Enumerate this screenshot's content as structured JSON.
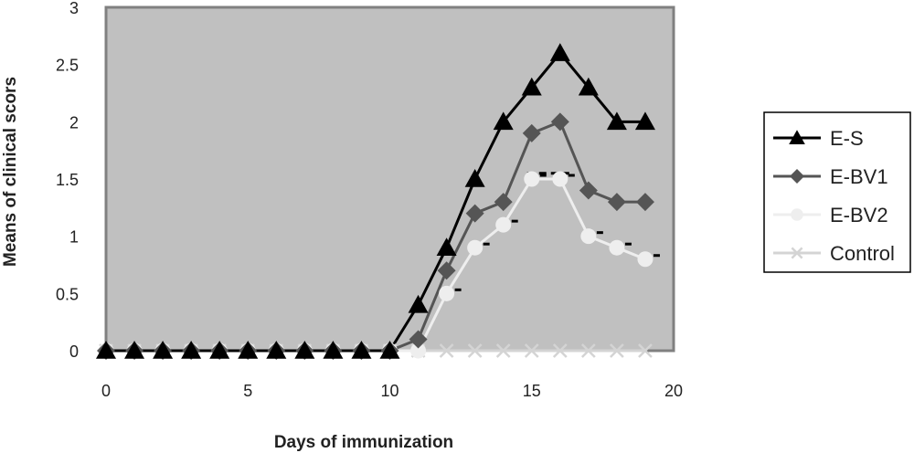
{
  "chart_data": {
    "type": "line",
    "xlabel": "Days of immunization",
    "ylabel": "Means of clinical scors",
    "xlim": [
      0,
      20
    ],
    "ylim": [
      0,
      3
    ],
    "xticks": [
      0,
      5,
      10,
      15,
      20
    ],
    "yticks": [
      0,
      0.5,
      1,
      1.5,
      2,
      2.5,
      3
    ],
    "ytick_labels": [
      "0",
      "0.5",
      "1",
      "1.5",
      "2",
      "2.5",
      "3"
    ],
    "grid": false,
    "legend_position": "right",
    "plot_background": "#c0c0c0",
    "x": [
      0,
      1,
      2,
      3,
      4,
      5,
      6,
      7,
      8,
      9,
      10,
      11,
      12,
      13,
      14,
      15,
      16,
      17,
      18,
      19
    ],
    "series": [
      {
        "name": "E-S",
        "marker": "triangle",
        "color": "#000000",
        "values": [
          0,
          0,
          0,
          0,
          0,
          0,
          0,
          0,
          0,
          0,
          0,
          0.4,
          0.9,
          1.5,
          2.0,
          2.3,
          2.6,
          2.3,
          2.0,
          2.0
        ]
      },
      {
        "name": "E-BV1",
        "marker": "diamond",
        "color": "#555555",
        "values": [
          0,
          0,
          0,
          0,
          0,
          0,
          0,
          0,
          0,
          0,
          0,
          0.1,
          0.7,
          1.2,
          1.3,
          1.9,
          2.0,
          1.4,
          1.3,
          1.3
        ]
      },
      {
        "name": "E-BV2",
        "marker": "circle",
        "color": "#eeeeee",
        "values": [
          0,
          0,
          0,
          0,
          0,
          0,
          0,
          0,
          0,
          0,
          0,
          0,
          0.5,
          0.9,
          1.1,
          1.5,
          1.5,
          1.0,
          0.9,
          0.8
        ]
      },
      {
        "name": "Control",
        "marker": "x",
        "color": "#d4d4d4",
        "values": [
          0,
          0,
          0,
          0,
          0,
          0,
          0,
          0,
          0,
          0,
          0,
          0,
          0,
          0,
          0,
          0,
          0,
          0,
          0,
          0
        ]
      }
    ]
  }
}
